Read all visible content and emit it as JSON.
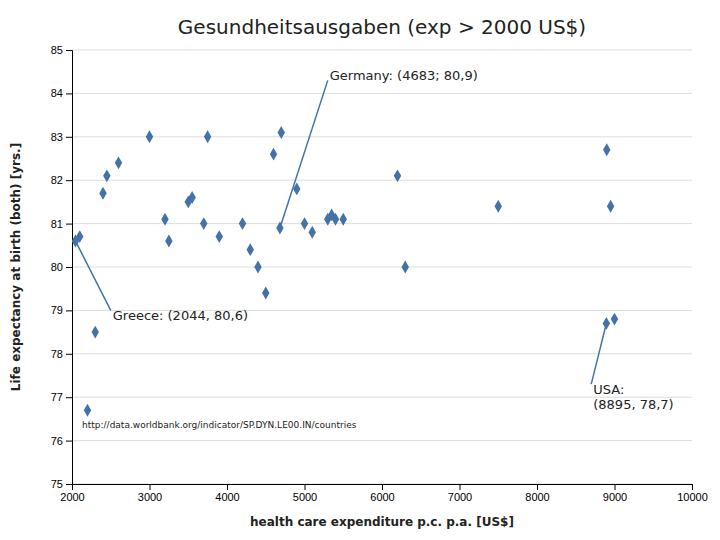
{
  "chart_data": {
    "type": "scatter",
    "title": "Gesundheitsausgaben (exp > 2000 US$)",
    "x_label": "health care expenditure p.c. p.a. [US$]",
    "y_label": "Life expectancy at birth (both) [yrs.]",
    "x": [
      2044,
      2100,
      2200,
      2300,
      2400,
      2450,
      2600,
      3000,
      3200,
      3250,
      3500,
      3550,
      3700,
      3750,
      3900,
      4200,
      4300,
      4400,
      4500,
      4600,
      4683,
      4700,
      4900,
      5000,
      5100,
      5300,
      5350,
      5400,
      5500,
      6200,
      6300,
      7500,
      8900,
      8950,
      8895,
      9000
    ],
    "values": [
      80.6,
      80.7,
      76.7,
      78.5,
      81.7,
      82.1,
      82.4,
      83.0,
      81.1,
      80.6,
      81.5,
      81.6,
      81.0,
      83.0,
      80.7,
      81.0,
      80.4,
      80.0,
      79.4,
      82.6,
      80.9,
      83.1,
      81.8,
      81.0,
      80.8,
      81.1,
      81.2,
      81.1,
      81.1,
      82.1,
      80.0,
      81.4,
      82.7,
      81.4,
      78.7,
      78.8
    ],
    "color": "#4472A8",
    "marker": "diamond",
    "xlim": [
      2000,
      10000
    ],
    "ylim": [
      75,
      85
    ],
    "xticks": [
      2000,
      3000,
      4000,
      5000,
      6000,
      7000,
      8000,
      9000,
      10000
    ],
    "yticks": [
      75,
      76,
      77,
      78,
      79,
      80,
      81,
      82,
      83,
      84,
      85
    ],
    "grid": "y",
    "annotations": [
      {
        "text": "Germany: (4683; 80,9)",
        "x": 4683,
        "y": 80.9,
        "text_x": 5300,
        "text_y": 84.3
      },
      {
        "text": "Greece: (2044, 80,6)",
        "x": 2044,
        "y": 80.6,
        "text_x": 2500,
        "text_y": 79.0
      },
      {
        "text": "USA:\n(8895, 78,7)",
        "x": 8895,
        "y": 78.7,
        "text_x": 8700,
        "text_y": 77.3
      }
    ],
    "source": {
      "text": "http://data.worldbank.org/indicator/SP.DYN.LE00.IN/countries",
      "x": 2130,
      "y": 76.35
    }
  }
}
